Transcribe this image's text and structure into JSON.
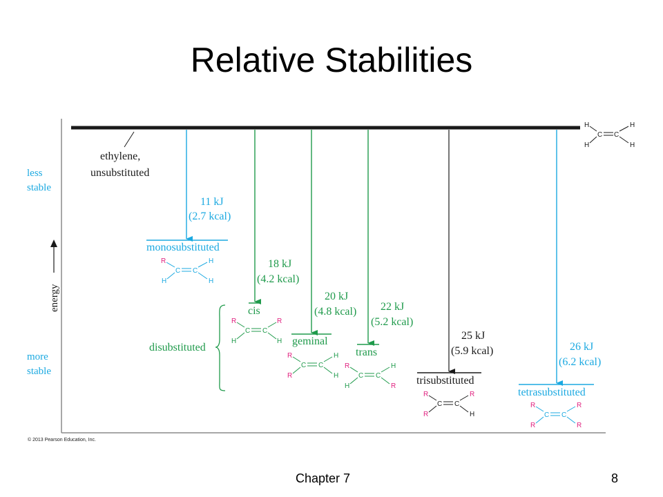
{
  "title": "Relative Stabilities",
  "footer": {
    "chapter": "Chapter 7",
    "page": "8"
  },
  "copyright": "© 2013 Pearson Education, Inc.",
  "colors": {
    "cyan": "#1ba9e1",
    "green": "#1f9a4b",
    "magenta": "#e0207f",
    "black": "#1a1a1a",
    "gray": "#8a8a8a"
  },
  "axis": {
    "less_stable_line1": "less",
    "less_stable_line2": "stable",
    "more_stable_line1": "more",
    "more_stable_line2": "stable",
    "energy": "energy"
  },
  "reference": {
    "label_line1": "ethylene,",
    "label_line2": "unsubstituted"
  },
  "group_label": "disubstituted",
  "atoms": {
    "C": "C",
    "H": "H",
    "R": "R"
  },
  "levels": [
    {
      "key": "mono",
      "name": "monosubstituted",
      "kj": "11 kJ",
      "kcal": "(2.7 kcal)"
    },
    {
      "key": "cis",
      "name": "cis",
      "kj": "18 kJ",
      "kcal": "(4.2 kcal)"
    },
    {
      "key": "geminal",
      "name": "geminal",
      "kj": "20 kJ",
      "kcal": "(4.8 kcal)"
    },
    {
      "key": "trans",
      "name": "trans",
      "kj": "22 kJ",
      "kcal": "(5.2 kcal)"
    },
    {
      "key": "tri",
      "name": "trisubstituted",
      "kj": "25 kJ",
      "kcal": "(5.9 kcal)"
    },
    {
      "key": "tetra",
      "name": "tetrasubstituted",
      "kj": "26 kJ",
      "kcal": "(6.2 kcal)"
    }
  ]
}
